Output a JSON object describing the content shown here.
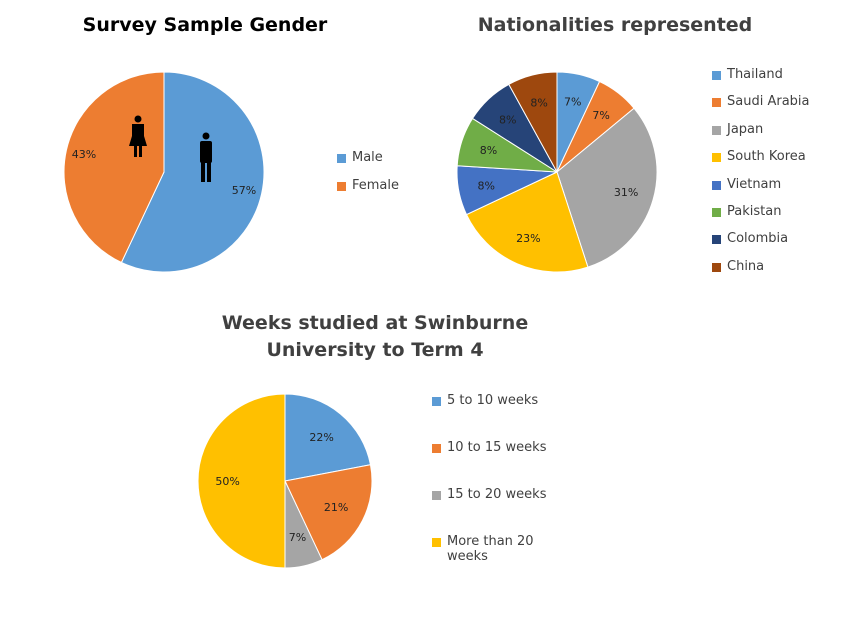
{
  "chart_data": [
    {
      "type": "pie",
      "title": "Survey Sample  Gender",
      "categories": [
        "Male",
        "Female"
      ],
      "values": [
        57,
        43
      ],
      "labels": [
        "57%",
        "43%"
      ],
      "colors": [
        "#5B9BD5",
        "#ED7D31"
      ],
      "icons": [
        "male-figure-icon",
        "female-figure-icon"
      ],
      "legend": "right"
    },
    {
      "type": "pie",
      "title": "Nationalities represented",
      "categories": [
        "Thailand",
        "Saudi Arabia",
        "Japan",
        "South Korea",
        "Vietnam",
        "Pakistan",
        "Colombia",
        "China"
      ],
      "values": [
        7,
        7,
        31,
        23,
        8,
        8,
        8,
        8
      ],
      "labels": [
        "7%",
        "7%",
        "31%",
        "23%",
        "8%",
        "8%",
        "8%",
        "8%"
      ],
      "colors": [
        "#5B9BD5",
        "#ED7D31",
        "#A5A5A5",
        "#FFC000",
        "#4472C4",
        "#70AD47",
        "#264478",
        "#9E480E"
      ],
      "legend": "right"
    },
    {
      "type": "pie",
      "title": "Weeks studied at Swinburne University to Term 4",
      "categories": [
        "5 to 10 weeks",
        "10 to 15 weeks",
        "15 to 20 weeks",
        "More than 20 weeks"
      ],
      "values": [
        22,
        21,
        7,
        50
      ],
      "labels": [
        "22%",
        "21%",
        "7%",
        "50%"
      ],
      "colors": [
        "#5B9BD5",
        "#ED7D31",
        "#A5A5A5",
        "#FFC000"
      ],
      "legend": "right"
    }
  ]
}
